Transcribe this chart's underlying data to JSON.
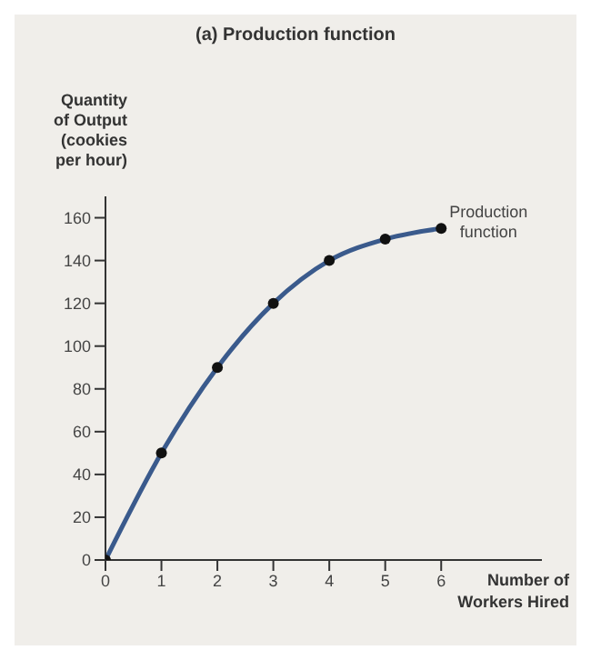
{
  "chart_data": {
    "type": "line",
    "title": "(a) Production function",
    "xlabel": "Number of Workers Hired",
    "ylabel": "Quantity of Output (cookies per hour)",
    "x": [
      0,
      1,
      2,
      3,
      4,
      5,
      6
    ],
    "series": [
      {
        "name": "Production function",
        "color": "#3a5a8c",
        "values": [
          0,
          50,
          90,
          120,
          140,
          150,
          155
        ]
      }
    ],
    "xlim": [
      0,
      7.8
    ],
    "xticks": [
      0,
      1,
      2,
      3,
      4,
      5,
      6
    ],
    "ylim": [
      0,
      170
    ],
    "yticks": [
      0,
      20,
      40,
      60,
      80,
      100,
      120,
      140,
      160
    ],
    "grid": false,
    "legend": false,
    "marker": "circle",
    "line_style": "solid"
  }
}
